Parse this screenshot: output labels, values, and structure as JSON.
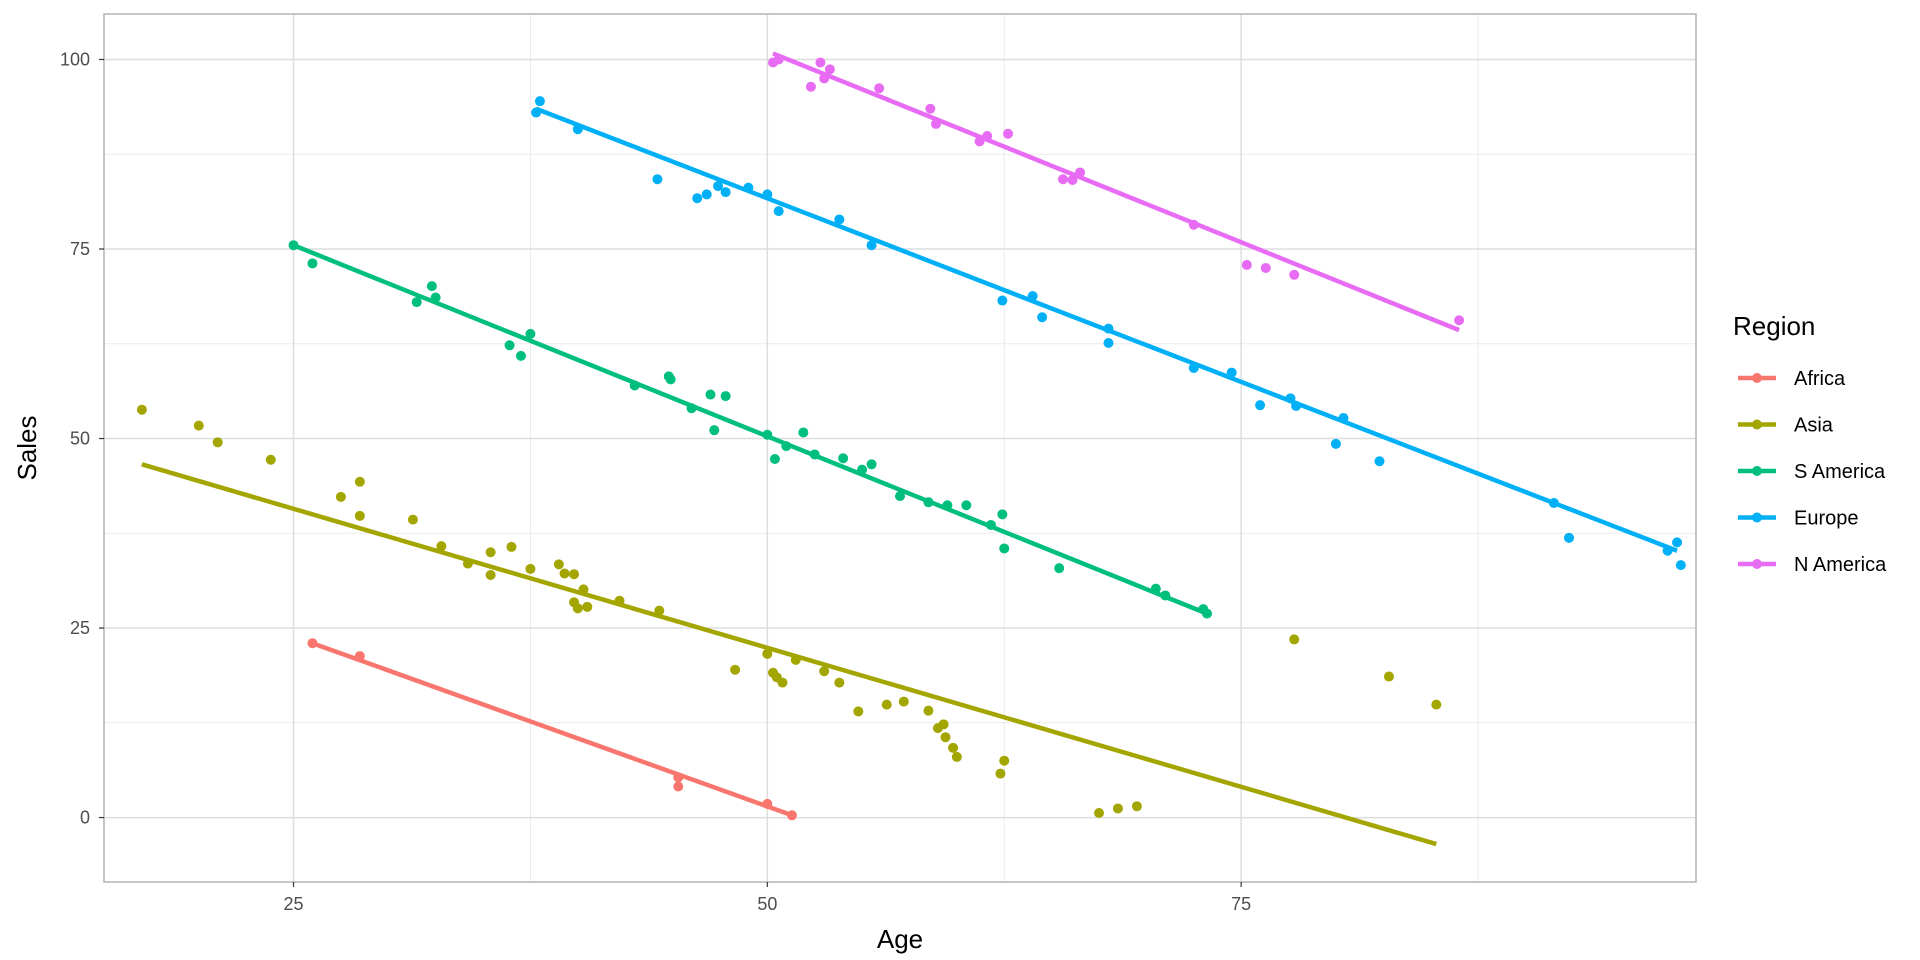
{
  "chart_data": {
    "type": "scatter",
    "title": "",
    "xlabel": "Age",
    "ylabel": "Sales",
    "xlim": [
      15,
      99
    ],
    "ylim": [
      -8.5,
      106
    ],
    "x_ticks": [
      25,
      50,
      75
    ],
    "y_ticks": [
      0,
      25,
      50,
      75,
      100
    ],
    "grid": true,
    "legend_title": "Region",
    "legend_position": "right",
    "series": [
      {
        "name": "Africa",
        "color": "#F8766D",
        "points": [
          [
            26,
            23
          ],
          [
            28.5,
            21.3
          ],
          [
            45.3,
            5.3
          ],
          [
            45.3,
            4.1
          ],
          [
            50,
            1.8
          ],
          [
            51.3,
            0.3
          ]
        ],
        "fit": [
          [
            26,
            23
          ],
          [
            51.3,
            0.3
          ]
        ]
      },
      {
        "name": "Asia",
        "color": "#A3A500",
        "points": [
          [
            17,
            53.8
          ],
          [
            20,
            51.7
          ],
          [
            21,
            49.5
          ],
          [
            23.8,
            47.2
          ],
          [
            27.5,
            42.3
          ],
          [
            28.5,
            44.3
          ],
          [
            28.5,
            39.8
          ],
          [
            31.3,
            39.3
          ],
          [
            32.8,
            35.8
          ],
          [
            34.2,
            33.5
          ],
          [
            35.4,
            35
          ],
          [
            35.4,
            32
          ],
          [
            36.5,
            35.7
          ],
          [
            37.5,
            32.8
          ],
          [
            39,
            33.4
          ],
          [
            39.3,
            32.2
          ],
          [
            39.8,
            32.1
          ],
          [
            39.8,
            28.4
          ],
          [
            40,
            27.6
          ],
          [
            40.3,
            30.1
          ],
          [
            40.5,
            27.8
          ],
          [
            42.2,
            28.6
          ],
          [
            44.3,
            27.3
          ],
          [
            48.3,
            19.5
          ],
          [
            50,
            21.6
          ],
          [
            50.3,
            19.1
          ],
          [
            50.5,
            18.5
          ],
          [
            50.8,
            17.8
          ],
          [
            51.5,
            20.8
          ],
          [
            53,
            19.3
          ],
          [
            53.8,
            17.8
          ],
          [
            54.8,
            14
          ],
          [
            56.3,
            14.9
          ],
          [
            57.2,
            15.3
          ],
          [
            58.5,
            14.1
          ],
          [
            59,
            11.8
          ],
          [
            59.3,
            12.3
          ],
          [
            59.4,
            10.6
          ],
          [
            59.8,
            9.2
          ],
          [
            60,
            8
          ],
          [
            62.3,
            5.8
          ],
          [
            62.5,
            7.5
          ],
          [
            67.5,
            0.6
          ],
          [
            68.5,
            1.2
          ],
          [
            69.5,
            1.5
          ],
          [
            77.8,
            23.5
          ],
          [
            82.8,
            18.6
          ],
          [
            85.3,
            14.9
          ]
        ],
        "fit": [
          [
            17,
            46.6
          ],
          [
            85.3,
            -3.5
          ]
        ]
      },
      {
        "name": "S America",
        "color": "#00BF7D",
        "points": [
          [
            25,
            75.5
          ],
          [
            26,
            73.1
          ],
          [
            31.5,
            68
          ],
          [
            32.3,
            70.1
          ],
          [
            32.5,
            68.6
          ],
          [
            36.4,
            62.3
          ],
          [
            37,
            60.9
          ],
          [
            37.5,
            63.8
          ],
          [
            43,
            57
          ],
          [
            44.8,
            58.2
          ],
          [
            44.9,
            57.8
          ],
          [
            46,
            54
          ],
          [
            47,
            55.8
          ],
          [
            47.2,
            51.1
          ],
          [
            47.8,
            55.6
          ],
          [
            50,
            50.5
          ],
          [
            50.4,
            47.3
          ],
          [
            51,
            49
          ],
          [
            51.9,
            50.8
          ],
          [
            52.5,
            47.9
          ],
          [
            54,
            47.4
          ],
          [
            55,
            45.9
          ],
          [
            55.5,
            46.6
          ],
          [
            57,
            42.4
          ],
          [
            58.5,
            41.6
          ],
          [
            59.5,
            41.2
          ],
          [
            60.5,
            41.2
          ],
          [
            61.8,
            38.6
          ],
          [
            62.4,
            40
          ],
          [
            62.5,
            35.5
          ],
          [
            65.4,
            32.9
          ],
          [
            70.5,
            30.2
          ],
          [
            71,
            29.3
          ],
          [
            73,
            27.5
          ],
          [
            73.2,
            26.9
          ]
        ],
        "fit": [
          [
            25,
            75.5
          ],
          [
            73.2,
            26.9
          ]
        ]
      },
      {
        "name": "Europe",
        "color": "#00B0F6",
        "points": [
          [
            37.8,
            93
          ],
          [
            38,
            94.5
          ],
          [
            40,
            90.8
          ],
          [
            44.2,
            84.2
          ],
          [
            46.3,
            81.7
          ],
          [
            46.8,
            82.2
          ],
          [
            47.4,
            83.3
          ],
          [
            47.8,
            82.5
          ],
          [
            49,
            83.1
          ],
          [
            50,
            82.2
          ],
          [
            50.6,
            80
          ],
          [
            53.8,
            78.9
          ],
          [
            55.5,
            75.5
          ],
          [
            62.4,
            68.2
          ],
          [
            64,
            68.8
          ],
          [
            64.5,
            66
          ],
          [
            68,
            64.5
          ],
          [
            68,
            62.6
          ],
          [
            72.5,
            59.3
          ],
          [
            74.5,
            58.7
          ],
          [
            76,
            54.4
          ],
          [
            77.6,
            55.3
          ],
          [
            77.9,
            54.3
          ],
          [
            80,
            49.3
          ],
          [
            80.4,
            52.7
          ],
          [
            82.3,
            47
          ],
          [
            91.5,
            41.5
          ],
          [
            92.3,
            36.9
          ],
          [
            97.5,
            35.2
          ],
          [
            98,
            36.3
          ],
          [
            98.2,
            33.3
          ]
        ],
        "fit": [
          [
            37.8,
            93.5
          ],
          [
            98,
            35.2
          ]
        ]
      },
      {
        "name": "N America",
        "color": "#E76BF3",
        "points": [
          [
            50.3,
            99.6
          ],
          [
            50.6,
            100
          ],
          [
            52.3,
            96.4
          ],
          [
            52.8,
            99.6
          ],
          [
            53,
            97.5
          ],
          [
            53.3,
            98.7
          ],
          [
            55.9,
            96.2
          ],
          [
            58.6,
            93.5
          ],
          [
            58.9,
            91.5
          ],
          [
            61.2,
            89.2
          ],
          [
            61.6,
            89.9
          ],
          [
            62.7,
            90.2
          ],
          [
            65.6,
            84.2
          ],
          [
            66.1,
            84.1
          ],
          [
            66.5,
            85.1
          ],
          [
            72.5,
            78.2
          ],
          [
            75.3,
            72.9
          ],
          [
            76.3,
            72.5
          ],
          [
            77.8,
            71.6
          ],
          [
            86.5,
            65.6
          ]
        ],
        "fit": [
          [
            50.3,
            100.8
          ],
          [
            86.5,
            64.3
          ]
        ]
      }
    ]
  }
}
